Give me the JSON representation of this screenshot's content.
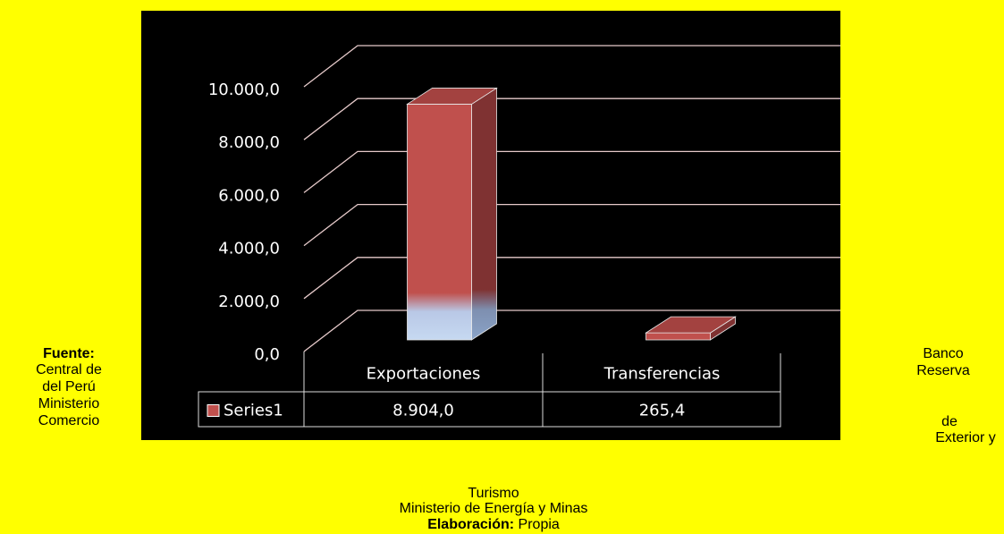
{
  "chart_data": {
    "type": "bar3d",
    "categories": [
      "Exportaciones",
      "Transferencias"
    ],
    "series": [
      {
        "name": "Series1",
        "color": "#c0504d",
        "values": [
          8904.0,
          265.4
        ],
        "value_labels": [
          "8.904,0",
          "265,4"
        ]
      }
    ],
    "ylim": [
      0,
      10000
    ],
    "yticks": [
      {
        "value": 0,
        "label": "0,0"
      },
      {
        "value": 2000,
        "label": "2.000,0"
      },
      {
        "value": 4000,
        "label": "4.000,0"
      },
      {
        "value": 6000,
        "label": "6.000,0"
      },
      {
        "value": 8000,
        "label": "8.000,0"
      },
      {
        "value": 10000,
        "label": "10.000,0"
      }
    ],
    "grid": true,
    "data_table": true
  },
  "source": {
    "label": "Fuente:",
    "left_lines": [
      "Central de",
      "del Perú",
      "Ministerio",
      "Comercio"
    ],
    "right_lines": [
      "Banco",
      "Reserva",
      "de",
      "Exterior y"
    ],
    "center_lines": [
      "Turismo",
      "Ministerio de Energía y Minas"
    ]
  },
  "credit": {
    "label": "Elaboración:",
    "text": "Propia"
  }
}
